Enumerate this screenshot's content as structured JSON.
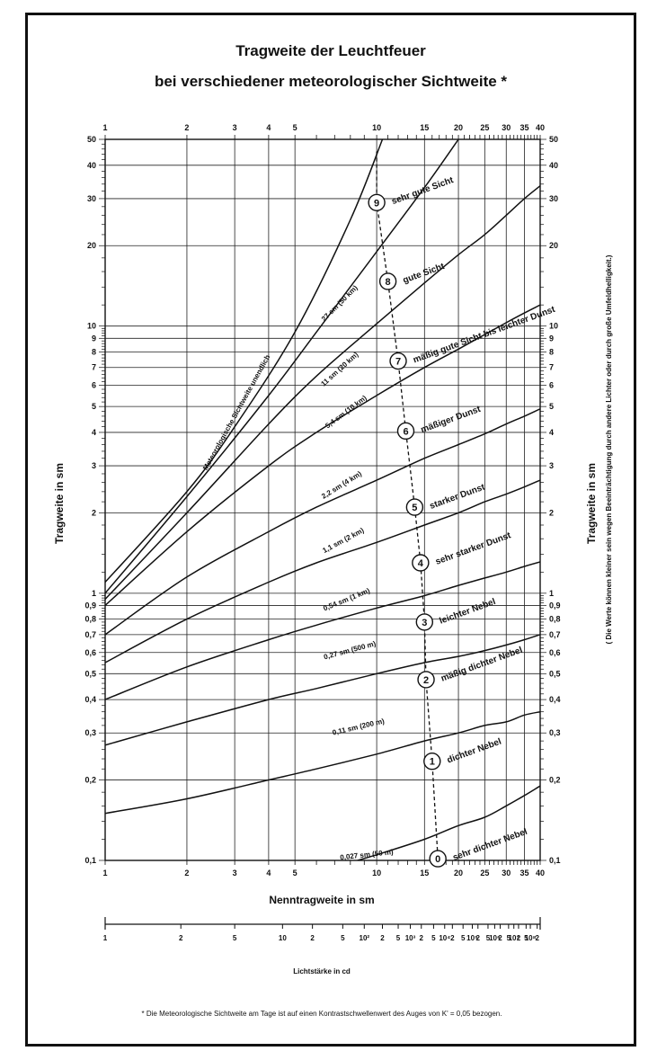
{
  "chart_data": {
    "type": "line",
    "title": "Tragweite der Leuchtfeuer",
    "subtitle": "bei verschiedener meteorologischer Sichtweite *",
    "xlabel": "Nenntragweite in sm",
    "ylabel_left": "Tragweite in sm",
    "ylabel_right": "Tragweite in sm",
    "right_note": "( Die Werte können kleiner sein wegen Beeinträchtigung durch andere Lichter oder durch große Umfeldhelligkeit.)",
    "secondary_xlabel": "Lichtstärke in cd",
    "footnote": "* Die Meteorologische Sichtweite am Tage ist auf einen Kontrastschwellenwert des Auges von K' = 0,05 bezogen.",
    "xlim": [
      1,
      40
    ],
    "ylim": [
      0.1,
      50
    ],
    "yscale": "log",
    "x_tick_labels": [
      {
        "v": 1,
        "t": "1"
      },
      {
        "v": 2,
        "t": "2"
      },
      {
        "v": 3,
        "t": "3"
      },
      {
        "v": 4,
        "t": "4"
      },
      {
        "v": 5,
        "t": "5"
      },
      {
        "v": 10,
        "t": "10"
      },
      {
        "v": 15,
        "t": "15"
      },
      {
        "v": 20,
        "t": "20"
      },
      {
        "v": 25,
        "t": "25"
      },
      {
        "v": 30,
        "t": "30"
      },
      {
        "v": 35,
        "t": "35"
      },
      {
        "v": 40,
        "t": "40"
      }
    ],
    "y_tick_labels": [
      {
        "v": 0.1,
        "t": "0,1"
      },
      {
        "v": 0.2,
        "t": "0,2"
      },
      {
        "v": 0.3,
        "t": "0,3"
      },
      {
        "v": 0.4,
        "t": "0,4"
      },
      {
        "v": 0.5,
        "t": "0,5"
      },
      {
        "v": 0.6,
        "t": "0,6"
      },
      {
        "v": 0.7,
        "t": "0,7"
      },
      {
        "v": 0.8,
        "t": "0,8"
      },
      {
        "v": 0.9,
        "t": "0,9"
      },
      {
        "v": 1,
        "t": "1"
      },
      {
        "v": 2,
        "t": "2"
      },
      {
        "v": 3,
        "t": "3"
      },
      {
        "v": 4,
        "t": "4"
      },
      {
        "v": 5,
        "t": "5"
      },
      {
        "v": 6,
        "t": "6"
      },
      {
        "v": 7,
        "t": "7"
      },
      {
        "v": 8,
        "t": "8"
      },
      {
        "v": 9,
        "t": "9"
      },
      {
        "v": 10,
        "t": "10"
      },
      {
        "v": 20,
        "t": "20"
      },
      {
        "v": 30,
        "t": "30"
      },
      {
        "v": 40,
        "t": "40"
      },
      {
        "v": 50,
        "t": "50"
      }
    ],
    "lichtstaerke_ticks": [
      {
        "x": 1.0,
        "t": "1"
      },
      {
        "x": 1.9,
        "t": "2"
      },
      {
        "x": 3.0,
        "t": "5"
      },
      {
        "x": 4.5,
        "t": "10"
      },
      {
        "x": 5.8,
        "t": "2"
      },
      {
        "x": 7.5,
        "t": "5"
      },
      {
        "x": 9.0,
        "t": "10²"
      },
      {
        "x": 10.5,
        "t": "2"
      },
      {
        "x": 12.0,
        "t": "5"
      },
      {
        "x": 13.3,
        "t": "10³"
      },
      {
        "x": 14.6,
        "t": "2"
      },
      {
        "x": 16.2,
        "t": "5"
      },
      {
        "x": 17.8,
        "t": "10⁴"
      },
      {
        "x": 19.0,
        "t": "2"
      },
      {
        "x": 20.8,
        "t": "5"
      },
      {
        "x": 22.5,
        "t": "10⁵"
      },
      {
        "x": 23.6,
        "t": "2"
      },
      {
        "x": 25.7,
        "t": "5"
      },
      {
        "x": 27.2,
        "t": "10⁶"
      },
      {
        "x": 28.5,
        "t": "2"
      },
      {
        "x": 30.6,
        "t": "5"
      },
      {
        "x": 32.0,
        "t": "10⁷"
      },
      {
        "x": 33.3,
        "t": "2"
      },
      {
        "x": 35.5,
        "t": "5"
      },
      {
        "x": 36.8,
        "t": "10⁸"
      },
      {
        "x": 39.0,
        "t": "2"
      }
    ],
    "series": [
      {
        "name": "Meteorologische Sichtweite unendlich",
        "x": [
          1,
          2,
          3,
          5,
          8,
          10.5
        ],
        "y": [
          1.1,
          2.4,
          4.2,
          9.5,
          25,
          50
        ]
      },
      {
        "name": "27 sm (50 km)",
        "x": [
          1,
          2,
          4,
          6,
          10,
          15,
          20
        ],
        "y": [
          1.0,
          2.3,
          5.5,
          9.5,
          19,
          33,
          50
        ]
      },
      {
        "name": "11 sm (20 km)",
        "x": [
          1,
          2,
          4,
          6,
          10,
          15,
          20,
          25,
          30,
          35,
          40
        ],
        "y": [
          0.95,
          2.0,
          4.3,
          6.5,
          10.2,
          14.5,
          18.5,
          22,
          26,
          30,
          33.5
        ]
      },
      {
        "name": "5,4 sm (10 km)",
        "x": [
          1,
          2,
          4,
          6,
          10,
          15,
          20,
          25,
          30,
          35,
          40
        ],
        "y": [
          0.9,
          1.7,
          3.0,
          4.0,
          5.5,
          7.0,
          8.2,
          9.3,
          10.3,
          11.2,
          12
        ]
      },
      {
        "name": "2,2 sm (4 km)",
        "x": [
          1,
          2,
          4,
          6,
          10,
          15,
          20,
          25,
          30,
          35,
          40
        ],
        "y": [
          0.7,
          1.15,
          1.7,
          2.1,
          2.65,
          3.2,
          3.6,
          3.95,
          4.3,
          4.6,
          4.9
        ]
      },
      {
        "name": "1,1 sm (2 km)",
        "x": [
          1,
          2,
          4,
          6,
          10,
          15,
          20,
          25,
          30,
          35,
          40
        ],
        "y": [
          0.55,
          0.8,
          1.1,
          1.3,
          1.55,
          1.8,
          2.0,
          2.2,
          2.35,
          2.5,
          2.65
        ]
      },
      {
        "name": "0,54 sm (1 km)",
        "x": [
          1,
          2,
          4,
          6,
          10,
          15,
          20,
          25,
          30,
          35,
          40
        ],
        "y": [
          0.4,
          0.53,
          0.67,
          0.76,
          0.88,
          0.98,
          1.07,
          1.14,
          1.2,
          1.26,
          1.31
        ]
      },
      {
        "name": "0,27 sm (500 m)",
        "x": [
          1,
          2,
          4,
          6,
          10,
          15,
          20,
          25,
          30,
          35,
          40
        ],
        "y": [
          0.27,
          0.33,
          0.4,
          0.44,
          0.5,
          0.55,
          0.58,
          0.61,
          0.64,
          0.67,
          0.7
        ]
      },
      {
        "name": "0,11 sm (200 m)",
        "x": [
          1,
          2,
          4,
          6,
          10,
          15,
          20,
          25,
          30,
          35,
          40
        ],
        "y": [
          0.15,
          0.17,
          0.2,
          0.22,
          0.25,
          0.28,
          0.3,
          0.32,
          0.33,
          0.35,
          0.36
        ]
      },
      {
        "name": "0,027 sm (50 m)",
        "x": [
          8.5,
          10,
          15,
          20,
          25,
          30,
          35,
          40
        ],
        "y": [
          0.1,
          0.105,
          0.12,
          0.135,
          0.145,
          0.16,
          0.175,
          0.19
        ]
      }
    ],
    "curve_labels": [
      {
        "text": "Meteorologische Sichtweite unendlich",
        "x": 3.1,
        "y": 4.7,
        "angle": -61
      },
      {
        "text": "27 sm (50 km)",
        "x": 7.4,
        "y": 12.0,
        "angle": -45
      },
      {
        "text": "11 sm (20 km)",
        "x": 7.4,
        "y": 6.8,
        "angle": -42
      },
      {
        "text": "5,4 sm (10 km)",
        "x": 7.8,
        "y": 4.7,
        "angle": -37
      },
      {
        "text": "2,2 sm (4 km)",
        "x": 7.5,
        "y": 2.5,
        "angle": -32
      },
      {
        "text": "1,1 sm (2 km)",
        "x": 7.6,
        "y": 1.55,
        "angle": -28
      },
      {
        "text": "0,54 sm (1 km)",
        "x": 7.8,
        "y": 0.93,
        "angle": -22
      },
      {
        "text": "0,27 sm (500 m)",
        "x": 8.0,
        "y": 0.6,
        "angle": -15
      },
      {
        "text": "0,11 sm (200 m)",
        "x": 8.6,
        "y": 0.31,
        "angle": -13
      },
      {
        "text": "0,027 sm (50 m)",
        "x": 9.2,
        "y": 0.103,
        "angle": -6
      }
    ],
    "condition_markers": [
      {
        "num": "9",
        "x": 10.0,
        "y": 29,
        "label": "sehr gute Sicht"
      },
      {
        "num": "8",
        "x": 11.0,
        "y": 14.7,
        "label": "gute Sicht"
      },
      {
        "num": "7",
        "x": 12.0,
        "y": 7.4,
        "label": "mäßig gute Sicht bis leichter Dunst"
      },
      {
        "num": "6",
        "x": 12.8,
        "y": 4.05,
        "label": "mäßiger Dunst"
      },
      {
        "num": "5",
        "x": 13.8,
        "y": 2.1,
        "label": "starker Dunst"
      },
      {
        "num": "4",
        "x": 14.5,
        "y": 1.3,
        "label": "sehr starker Dunst"
      },
      {
        "num": "3",
        "x": 15.0,
        "y": 0.78,
        "label": "leichter Nebel"
      },
      {
        "num": "2",
        "x": 15.2,
        "y": 0.475,
        "label": "mäßig dichter Nebel"
      },
      {
        "num": "1",
        "x": 16.0,
        "y": 0.235,
        "label": "dichter Nebel"
      },
      {
        "num": "0",
        "x": 16.8,
        "y": 0.1015,
        "label": "sehr dichter Nebel"
      }
    ]
  }
}
